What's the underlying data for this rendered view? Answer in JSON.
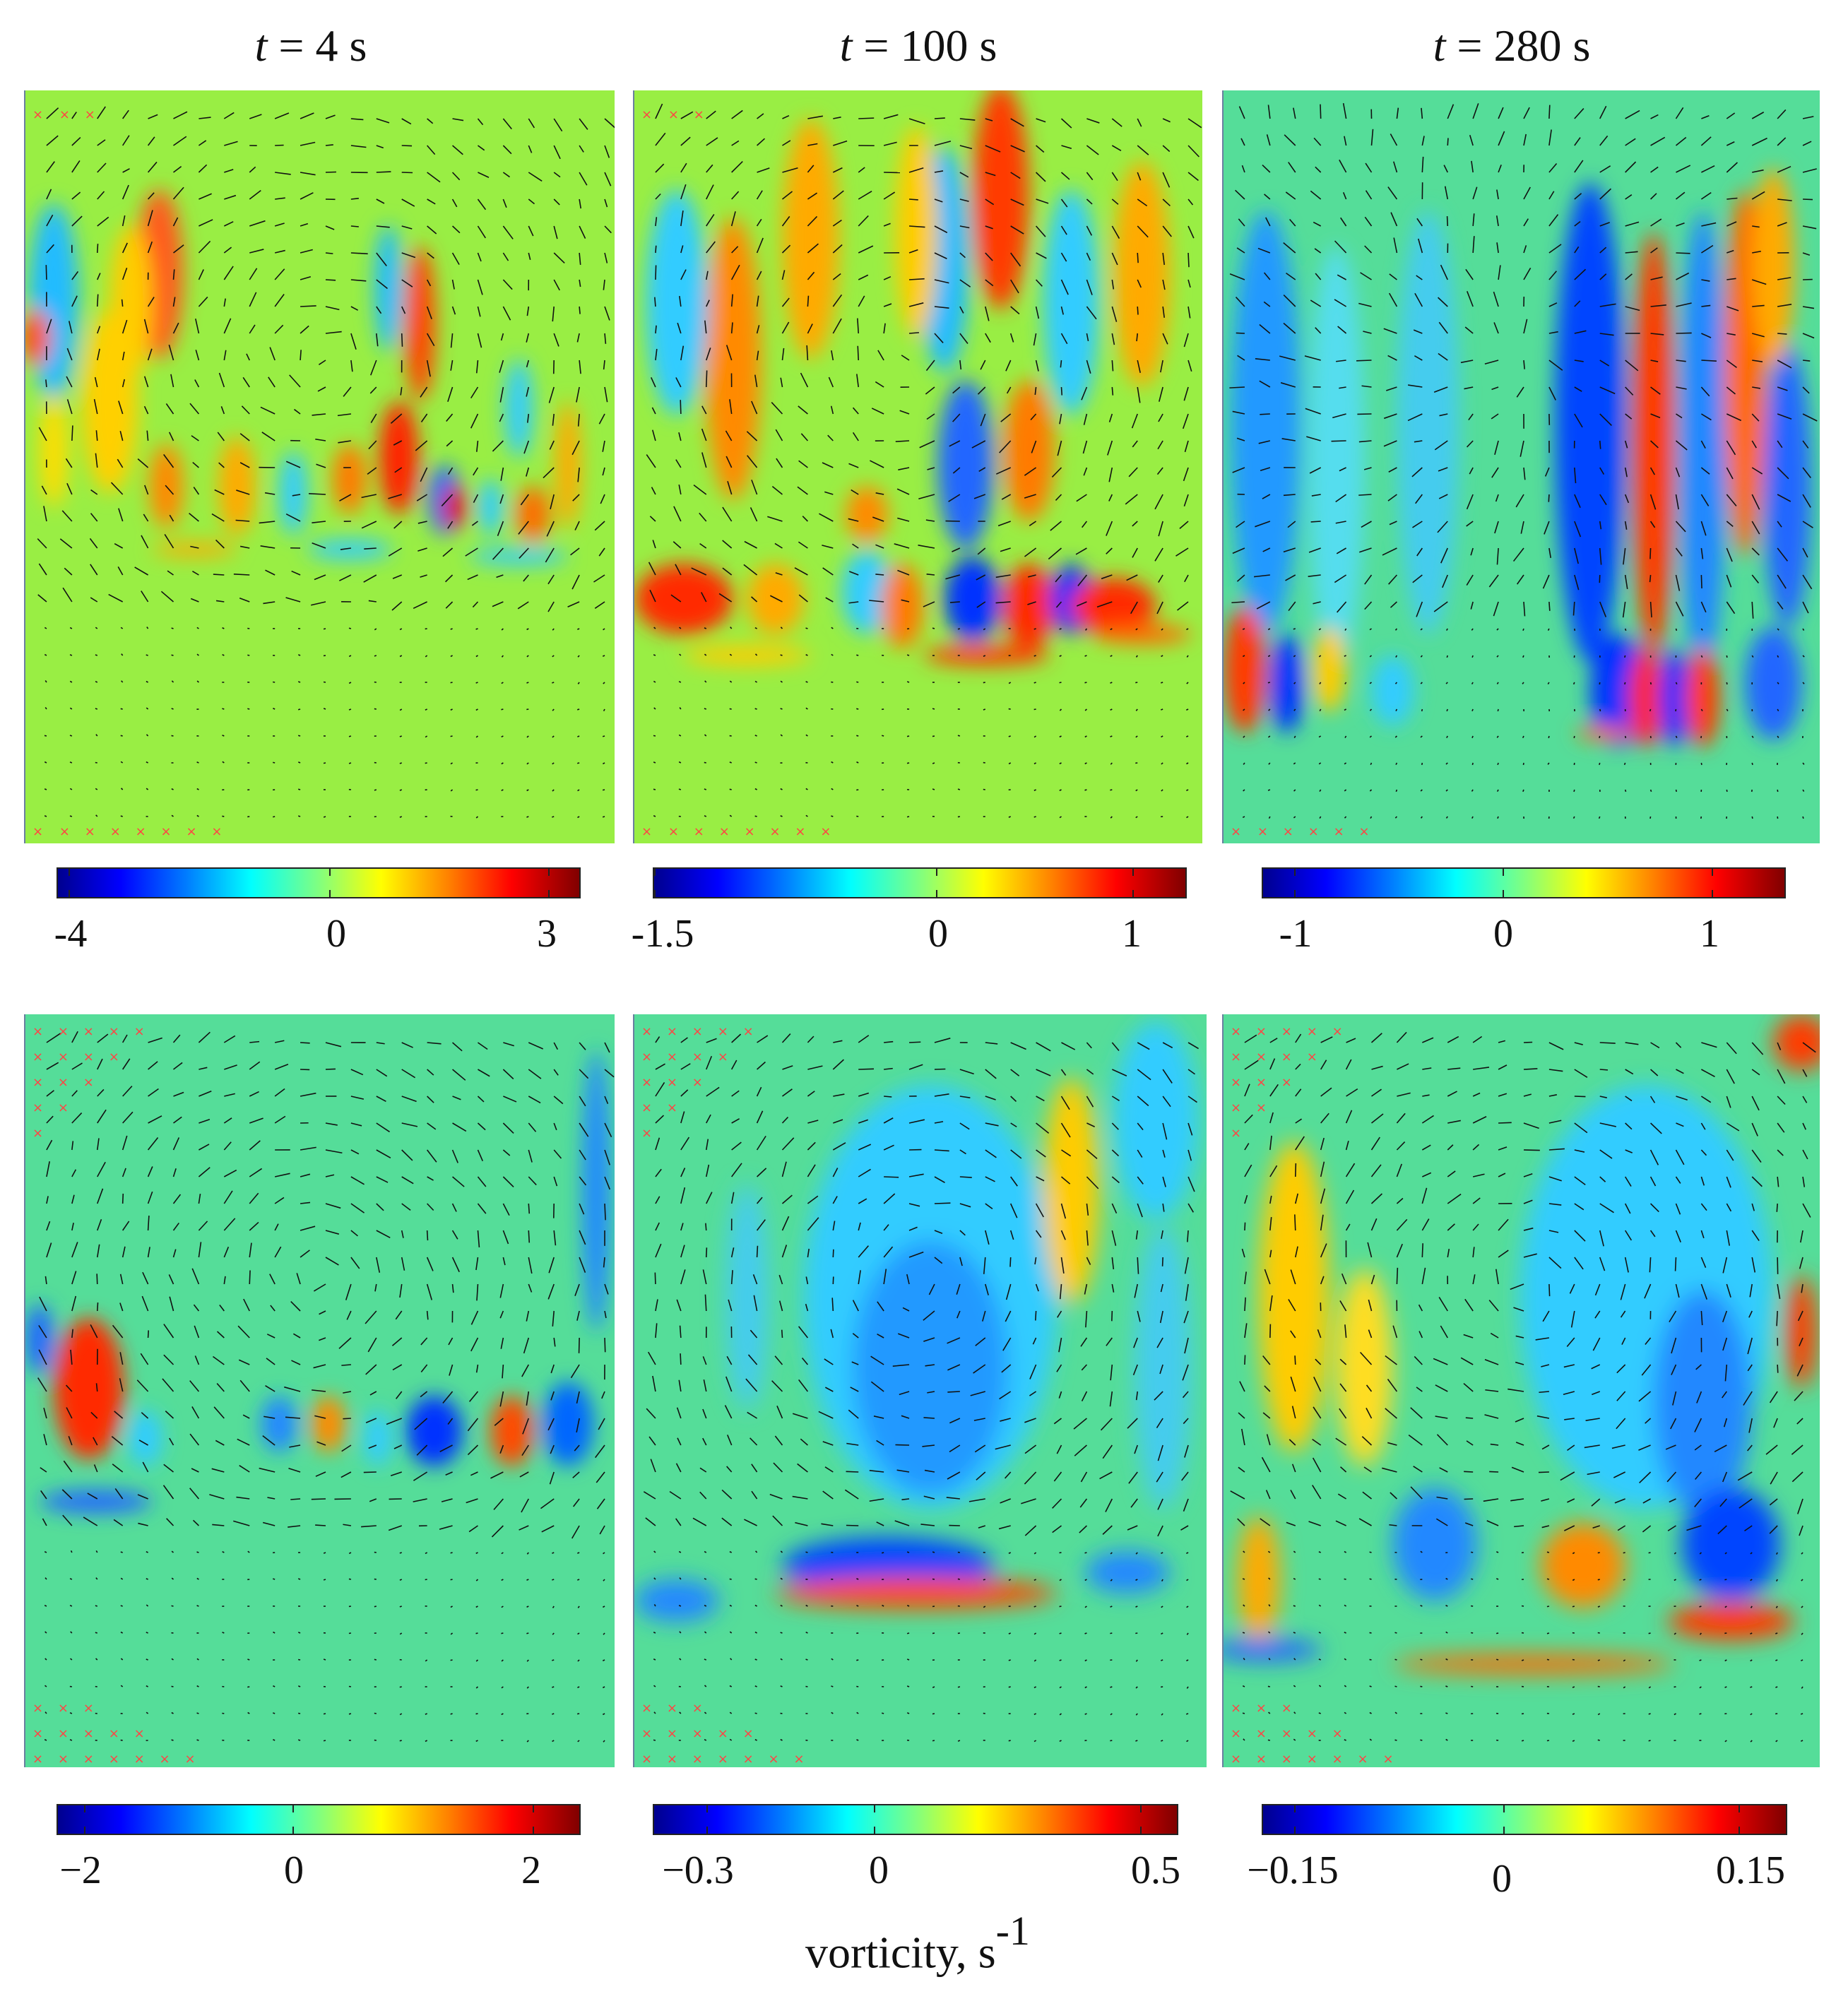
{
  "titles": [
    {
      "var": "t",
      "eq": " = 4 s"
    },
    {
      "var": "t",
      "eq": " = 100 s"
    },
    {
      "var": "t",
      "eq": " = 280 s"
    }
  ],
  "colorbars": {
    "row1": [
      {
        "labels": [
          "-4",
          "0",
          "3"
        ],
        "positions": [
          0.02,
          0.52,
          0.94
        ]
      },
      {
        "labels": [
          "-1.5",
          "0",
          "1"
        ],
        "positions": [
          0.0,
          0.53,
          0.9
        ]
      },
      {
        "labels": [
          "-1",
          "0",
          "1"
        ],
        "positions": [
          0.06,
          0.46,
          0.86
        ]
      }
    ],
    "row2": [
      {
        "labels": [
          "−2",
          "0",
          "2"
        ],
        "positions": [
          0.05,
          0.45,
          0.91
        ]
      },
      {
        "labels": [
          "−0.3",
          "0",
          "0.5"
        ],
        "positions": [
          0.1,
          0.42,
          0.93
        ]
      },
      {
        "labels": [
          "−0.15",
          "0",
          "0.15"
        ],
        "positions": [
          0.06,
          0.46,
          0.91
        ]
      }
    ]
  },
  "unit": {
    "text": "vorticity, s",
    "exp": "-1"
  },
  "colors": {
    "background_field_row1": "#99ee44",
    "background_field_row2": "#55dd99",
    "marker": "#ff4444"
  }
}
